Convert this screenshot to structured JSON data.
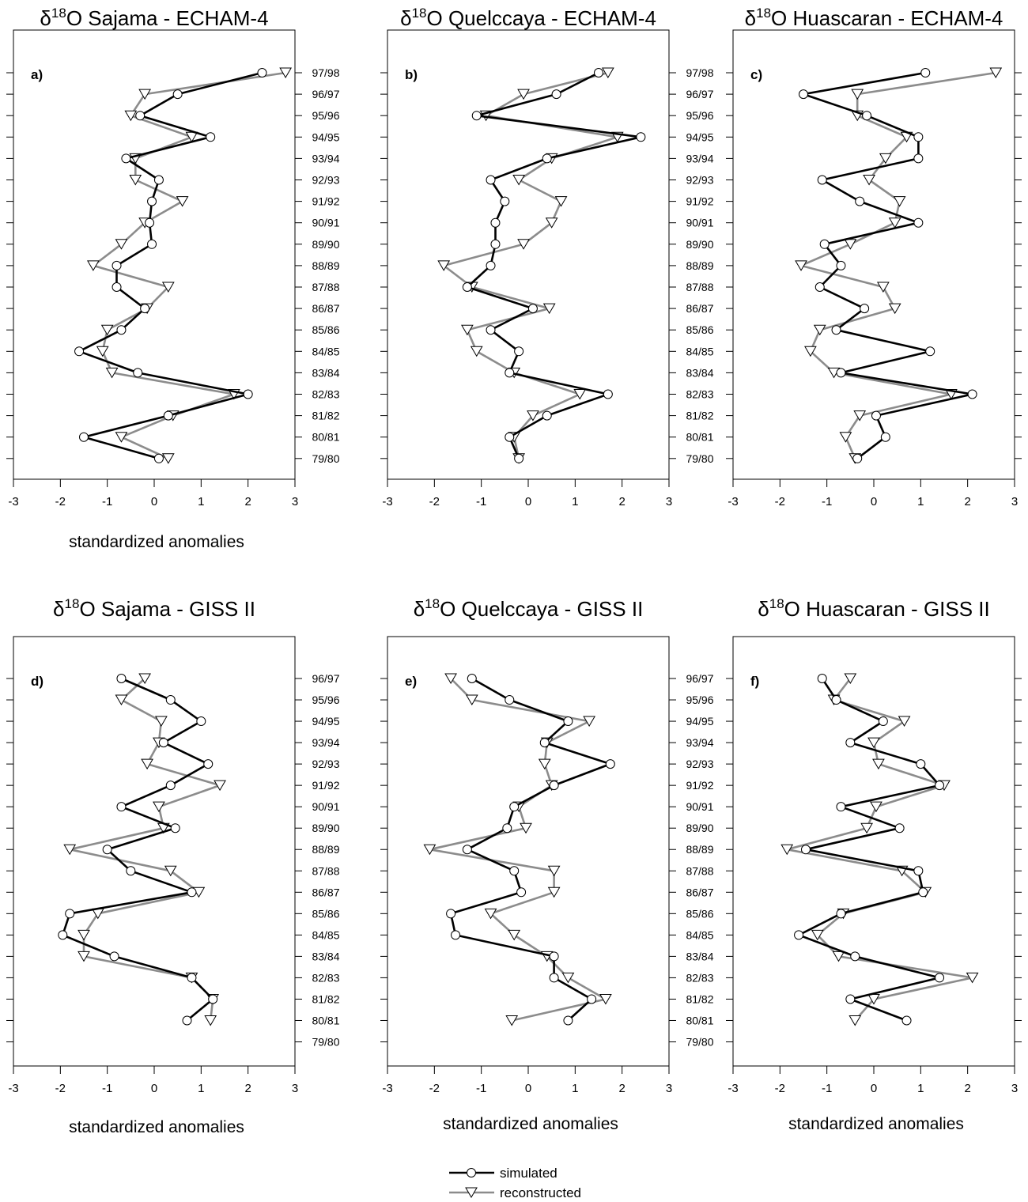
{
  "legend": {
    "simulated": "simulated",
    "reconstructed": "reconstructed"
  },
  "chart_data": [
    {
      "type": "line",
      "panel": "a)",
      "title": "δ18O Sajama - ECHAM-4",
      "title_parts": [
        "δ",
        "18",
        "O Sajama - ECHAM-4"
      ],
      "xlabel": "standardized anomalies",
      "xlim": [
        -3,
        3
      ],
      "xticks": [
        "-3",
        "-2",
        "-1",
        "0",
        "1",
        "2",
        "3"
      ],
      "years": [
        "97/98",
        "96/97",
        "95/96",
        "94/95",
        "93/94",
        "92/93",
        "91/92",
        "90/91",
        "89/90",
        "88/89",
        "87/88",
        "86/87",
        "85/86",
        "84/85",
        "83/84",
        "82/83",
        "81/82",
        "80/81",
        "79/80"
      ],
      "series": [
        {
          "name": "simulated",
          "values": [
            2.3,
            0.5,
            -0.3,
            1.2,
            -0.6,
            0.1,
            -0.05,
            -0.1,
            -0.05,
            -0.8,
            -0.8,
            -0.2,
            -0.7,
            -1.6,
            -0.35,
            2.0,
            0.3,
            -1.5,
            0.1
          ]
        },
        {
          "name": "reconstructed",
          "values": [
            2.8,
            -0.2,
            -0.5,
            0.8,
            -0.4,
            -0.4,
            0.6,
            -0.2,
            -0.7,
            -1.3,
            0.3,
            -0.15,
            -1.0,
            -1.1,
            -0.9,
            1.7,
            0.4,
            -0.7,
            0.3
          ]
        }
      ]
    },
    {
      "type": "line",
      "panel": "b)",
      "title": "δ18O Quelccaya - ECHAM-4",
      "title_parts": [
        "δ",
        "18",
        "O Quelccaya - ECHAM-4"
      ],
      "xlabel": "",
      "xlim": [
        -3,
        3
      ],
      "xticks": [
        "-3",
        "-2",
        "-1",
        "0",
        "1",
        "2",
        "3"
      ],
      "years": [
        "97/98",
        "96/97",
        "95/96",
        "94/95",
        "93/94",
        "92/93",
        "91/92",
        "90/91",
        "89/90",
        "88/89",
        "87/88",
        "86/87",
        "85/86",
        "84/85",
        "83/84",
        "82/83",
        "81/82",
        "80/81",
        "79/80"
      ],
      "series": [
        {
          "name": "simulated",
          "values": [
            1.5,
            0.6,
            -1.1,
            2.4,
            0.4,
            -0.8,
            -0.5,
            -0.7,
            -0.7,
            -0.8,
            -1.3,
            0.1,
            -0.8,
            -0.2,
            -0.4,
            1.7,
            0.4,
            -0.4,
            -0.2
          ]
        },
        {
          "name": "reconstructed",
          "values": [
            1.7,
            -0.1,
            -0.9,
            1.9,
            0.5,
            -0.2,
            0.7,
            0.5,
            -0.1,
            -1.8,
            -1.2,
            0.45,
            -1.3,
            -1.1,
            -0.3,
            1.1,
            0.1,
            -0.3,
            -0.2
          ]
        }
      ]
    },
    {
      "type": "line",
      "panel": "c)",
      "title": "δ18O Huascaran - ECHAM-4",
      "title_parts": [
        "δ",
        "18",
        "O Huascaran - ECHAM-4"
      ],
      "xlabel": "",
      "xlim": [
        -3,
        3
      ],
      "xticks": [
        "-3",
        "-2",
        "-1",
        "0",
        "1",
        "2",
        "3"
      ],
      "years": [
        "97/98",
        "96/97",
        "95/96",
        "94/95",
        "93/94",
        "92/93",
        "91/92",
        "90/91",
        "89/90",
        "88/89",
        "87/88",
        "86/87",
        "85/86",
        "84/85",
        "83/84",
        "82/83",
        "81/82",
        "80/81",
        "79/80"
      ],
      "series": [
        {
          "name": "simulated",
          "values": [
            1.1,
            -1.5,
            -0.15,
            0.95,
            0.95,
            -1.1,
            -0.3,
            0.95,
            -1.05,
            -0.7,
            -1.15,
            -0.2,
            -0.8,
            1.2,
            -0.7,
            2.1,
            0.05,
            0.25,
            -0.35
          ]
        },
        {
          "name": "reconstructed",
          "values": [
            2.6,
            -0.35,
            -0.35,
            0.7,
            0.25,
            -0.1,
            0.55,
            0.45,
            -0.5,
            -1.55,
            0.2,
            0.45,
            -1.15,
            -1.35,
            -0.85,
            1.65,
            -0.3,
            -0.6,
            -0.4
          ]
        }
      ]
    },
    {
      "type": "line",
      "panel": "d)",
      "title": "δ18O Sajama - GISS II",
      "title_parts": [
        "δ",
        "18",
        "O Sajama - GISS II"
      ],
      "xlabel": "standardized anomalies",
      "xlim": [
        -3,
        3
      ],
      "xticks": [
        "-3",
        "-2",
        "-1",
        "0",
        "1",
        "2",
        "3"
      ],
      "years": [
        "96/97",
        "95/96",
        "94/95",
        "93/94",
        "92/93",
        "91/92",
        "90/91",
        "89/90",
        "88/89",
        "87/88",
        "86/87",
        "85/86",
        "84/85",
        "83/84",
        "82/83",
        "81/82",
        "80/81",
        "79/80"
      ],
      "series": [
        {
          "name": "simulated",
          "values": [
            -0.7,
            0.35,
            1.0,
            0.2,
            1.15,
            0.35,
            -0.7,
            0.45,
            -1.0,
            -0.5,
            0.8,
            -1.8,
            -1.95,
            -0.85,
            0.8,
            1.25,
            0.7,
            null
          ]
        },
        {
          "name": "reconstructed",
          "values": [
            -0.2,
            -0.7,
            0.15,
            0.1,
            -0.15,
            1.4,
            0.1,
            0.2,
            -1.8,
            0.35,
            0.95,
            -1.2,
            -1.5,
            -1.5,
            0.8,
            1.25,
            1.2,
            null
          ]
        }
      ]
    },
    {
      "type": "line",
      "panel": "e)",
      "title": "δ18O Quelccaya - GISS II",
      "title_parts": [
        "δ",
        "18",
        "O Quelccaya - GISS II"
      ],
      "xlabel": "standardized anomalies",
      "xlim": [
        -3,
        3
      ],
      "xticks": [
        "-3",
        "-2",
        "-1",
        "0",
        "1",
        "2",
        "3"
      ],
      "years": [
        "96/97",
        "95/96",
        "94/95",
        "93/94",
        "92/93",
        "91/92",
        "90/91",
        "89/90",
        "88/89",
        "87/88",
        "86/87",
        "85/86",
        "84/85",
        "83/84",
        "82/83",
        "81/82",
        "80/81",
        "79/80"
      ],
      "series": [
        {
          "name": "simulated",
          "values": [
            -1.2,
            -0.4,
            0.85,
            0.35,
            1.75,
            0.55,
            -0.3,
            -0.45,
            -1.3,
            -0.3,
            -0.15,
            -1.65,
            -1.55,
            0.55,
            0.55,
            1.35,
            0.85,
            null
          ]
        },
        {
          "name": "reconstructed",
          "values": [
            -1.65,
            -1.2,
            1.3,
            0.4,
            0.35,
            0.5,
            -0.2,
            -0.05,
            -2.1,
            0.55,
            0.55,
            -0.8,
            -0.3,
            0.4,
            0.85,
            1.65,
            -0.35,
            null
          ]
        }
      ]
    },
    {
      "type": "line",
      "panel": "f)",
      "title": "δ18O Huascaran - GISS II",
      "title_parts": [
        "δ",
        "18",
        "O Huascaran - GISS II"
      ],
      "xlabel": "standardized anomalies",
      "xlim": [
        -3,
        3
      ],
      "xticks": [
        "-3",
        "-2",
        "-1",
        "0",
        "1",
        "2",
        "3"
      ],
      "years": [
        "96/97",
        "95/96",
        "94/95",
        "93/94",
        "92/93",
        "91/92",
        "90/91",
        "89/90",
        "88/89",
        "87/88",
        "86/87",
        "85/86",
        "84/85",
        "83/84",
        "82/83",
        "81/82",
        "80/81",
        "79/80"
      ],
      "series": [
        {
          "name": "simulated",
          "values": [
            -1.1,
            -0.8,
            0.2,
            -0.5,
            1.0,
            1.4,
            -0.7,
            0.55,
            -1.45,
            0.95,
            1.05,
            -0.7,
            -1.6,
            -0.4,
            1.4,
            -0.5,
            0.7,
            null
          ]
        },
        {
          "name": "reconstructed",
          "values": [
            -0.5,
            -0.85,
            0.65,
            0.0,
            0.1,
            1.5,
            0.05,
            -0.15,
            -1.85,
            0.6,
            1.1,
            -0.65,
            -1.2,
            -0.75,
            2.1,
            0.0,
            -0.4,
            null
          ]
        }
      ]
    }
  ]
}
